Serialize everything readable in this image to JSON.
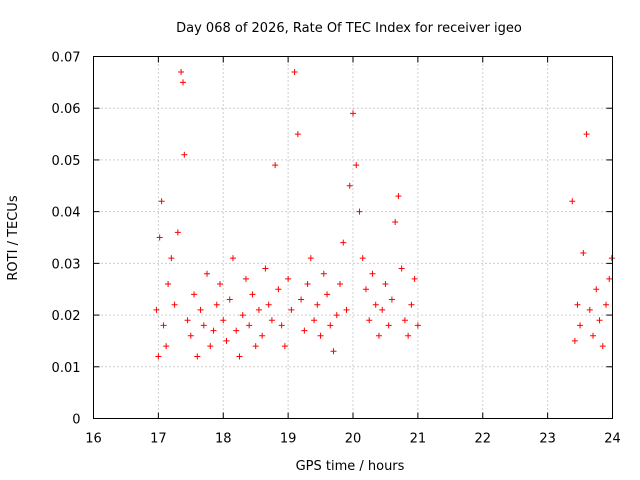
{
  "chart_data": {
    "type": "scatter",
    "title": "Day 068 of 2026, Rate Of TEC Index for receiver igeo",
    "xlabel": "GPS time / hours",
    "ylabel": "ROTI / TECUs",
    "xlim": [
      16,
      24
    ],
    "ylim": [
      0,
      0.07
    ],
    "xticks": [
      16,
      17,
      18,
      19,
      20,
      21,
      22,
      23,
      24
    ],
    "yticks": [
      0,
      0.01,
      0.02,
      0.03,
      0.04,
      0.05,
      0.06,
      0.07
    ],
    "xtick_labels": [
      "16",
      "17",
      "18",
      "19",
      "20",
      "21",
      "22",
      "23",
      "24"
    ],
    "ytick_labels": [
      "0",
      "0.01",
      "0.02",
      "0.03",
      "0.04",
      "0.05",
      "0.06",
      "0.07"
    ],
    "grid": true,
    "marker": "+",
    "series": [
      {
        "name": "ROTI",
        "color": "#ff0000",
        "x": [
          16.97,
          17.0,
          17.02,
          17.05,
          17.08,
          17.12,
          17.15,
          17.2,
          17.25,
          17.3,
          17.35,
          17.38,
          17.4,
          17.45,
          17.5,
          17.55,
          17.6,
          17.65,
          17.7,
          17.75,
          17.8,
          17.85,
          17.9,
          17.95,
          18.0,
          18.05,
          18.1,
          18.15,
          18.2,
          18.25,
          18.3,
          18.35,
          18.4,
          18.45,
          18.5,
          18.55,
          18.6,
          18.65,
          18.7,
          18.75,
          18.8,
          18.85,
          18.9,
          18.95,
          19.0,
          19.05,
          19.1,
          19.15,
          19.2,
          19.25,
          19.3,
          19.35,
          19.4,
          19.45,
          19.5,
          19.55,
          19.6,
          19.65,
          19.7,
          19.75,
          19.8,
          19.85,
          19.9,
          19.95,
          20.0,
          20.05,
          20.1,
          20.15,
          20.2,
          20.25,
          20.3,
          20.35,
          20.4,
          20.45,
          20.5,
          20.55,
          20.6,
          20.65,
          20.7,
          20.75,
          20.8,
          20.85,
          20.9,
          20.95,
          21.0,
          23.38,
          23.42,
          23.46,
          23.5,
          23.55,
          23.6,
          23.65,
          23.7,
          23.75,
          23.8,
          23.85,
          23.9,
          23.95,
          23.99
        ],
        "y": [
          0.021,
          0.012,
          0.035,
          0.042,
          0.018,
          0.014,
          0.026,
          0.031,
          0.022,
          0.036,
          0.067,
          0.065,
          0.051,
          0.019,
          0.016,
          0.024,
          0.012,
          0.021,
          0.018,
          0.028,
          0.014,
          0.017,
          0.022,
          0.026,
          0.019,
          0.015,
          0.023,
          0.031,
          0.017,
          0.012,
          0.02,
          0.027,
          0.018,
          0.024,
          0.014,
          0.021,
          0.016,
          0.029,
          0.022,
          0.019,
          0.049,
          0.025,
          0.018,
          0.014,
          0.027,
          0.021,
          0.067,
          0.055,
          0.023,
          0.017,
          0.026,
          0.031,
          0.019,
          0.022,
          0.016,
          0.028,
          0.024,
          0.018,
          0.013,
          0.02,
          0.026,
          0.034,
          0.021,
          0.045,
          0.059,
          0.049,
          0.04,
          0.031,
          0.025,
          0.019,
          0.028,
          0.022,
          0.016,
          0.021,
          0.026,
          0.018,
          0.023,
          0.038,
          0.043,
          0.029,
          0.019,
          0.016,
          0.022,
          0.027,
          0.018,
          0.042,
          0.015,
          0.022,
          0.018,
          0.032,
          0.055,
          0.021,
          0.016,
          0.025,
          0.019,
          0.014,
          0.022,
          0.027,
          0.031
        ]
      }
    ]
  }
}
